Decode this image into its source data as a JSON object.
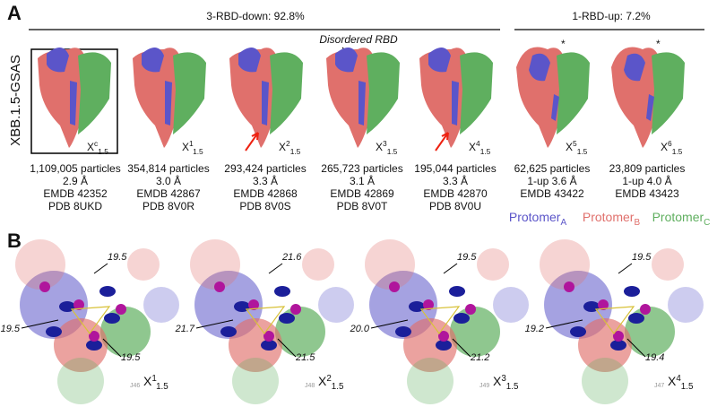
{
  "panel_a": {
    "label": "A",
    "group_down": "3-RBD-down: 92.8%",
    "group_up": "1-RBD-up: 7.2%",
    "annotation": "Disordered RBD",
    "row_label": "XBB.1.5-GSAS",
    "structures": [
      {
        "name": "X",
        "sup": "c",
        "sub": "1.5",
        "caption": [
          "1,109,005 particles",
          "2.9 Å",
          "EMDB 42352",
          "PDB 8UKD"
        ]
      },
      {
        "name": "X",
        "sup": "1",
        "sub": "1.5",
        "caption": [
          "354,814 particles",
          "3.0 Å",
          "EMDB 42867",
          "PDB 8V0R"
        ]
      },
      {
        "name": "X",
        "sup": "2",
        "sub": "1.5",
        "arrow": true,
        "caption": [
          "293,424 particles",
          "3.3 Å",
          "EMDB 42868",
          "PDB 8V0S"
        ]
      },
      {
        "name": "X",
        "sup": "3",
        "sub": "1.5",
        "caption": [
          "265,723 particles",
          "3.1 Å",
          "EMDB 42869",
          "PDB 8V0T"
        ]
      },
      {
        "name": "X",
        "sup": "4",
        "sub": "1.5",
        "arrow": true,
        "caption": [
          "195,044 particles",
          "3.3 Å",
          "EMDB 42870",
          "PDB 8V0U"
        ]
      },
      {
        "name": "X",
        "sup": "5",
        "sub": "1.5",
        "marker": "*",
        "caption": [
          "62,625 particles",
          "1-up 3.6 Å",
          "EMDB 43422"
        ]
      },
      {
        "name": "X",
        "sup": "6",
        "sub": "1.5",
        "marker": "*",
        "caption": [
          "23,809 particles",
          "1-up 4.0 Å",
          "EMDB 43423"
        ]
      }
    ],
    "legend": [
      {
        "name": "Protomer",
        "sub": "A",
        "color": "#5b55c9"
      },
      {
        "name": "Protomer",
        "sub": "B",
        "color": "#e0706c"
      },
      {
        "name": "Protomer",
        "sub": "C",
        "color": "#5faf5f"
      }
    ]
  },
  "panel_b": {
    "label": "B",
    "views": [
      {
        "name": "X",
        "sup": "1",
        "sub": "1.5",
        "code": "J46",
        "distances": [
          "19.5",
          "19.5",
          "19.5"
        ]
      },
      {
        "name": "X",
        "sup": "2",
        "sub": "1.5",
        "code": "J48",
        "distances": [
          "21.6",
          "21.7",
          "21.5"
        ]
      },
      {
        "name": "X",
        "sup": "3",
        "sub": "1.5",
        "code": "J49",
        "distances": [
          "19.5",
          "20.0",
          "21.2"
        ]
      },
      {
        "name": "X",
        "sup": "4",
        "sub": "1.5",
        "code": "J47",
        "distances": [
          "19.5",
          "19.2",
          "19.4"
        ]
      }
    ]
  }
}
